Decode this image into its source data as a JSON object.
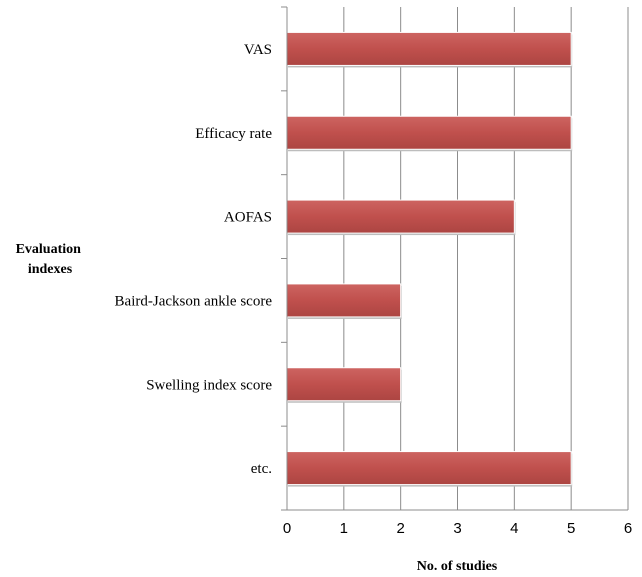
{
  "chart_data": {
    "type": "bar",
    "orientation": "horizontal",
    "categories": [
      "VAS",
      "Efficacy rate",
      "AOFAS",
      "Baird-Jackson ankle score",
      "Swelling index score",
      "etc."
    ],
    "values": [
      5,
      5,
      4,
      2,
      2,
      5
    ],
    "xlabel": "No. of studies",
    "ylabel_lines": [
      "Evaluation",
      "indexes"
    ],
    "xlim": [
      0,
      6
    ],
    "xticks": [
      0,
      1,
      2,
      3,
      4,
      5,
      6
    ],
    "grid": "vertical",
    "bar_color": "#c0504d"
  }
}
